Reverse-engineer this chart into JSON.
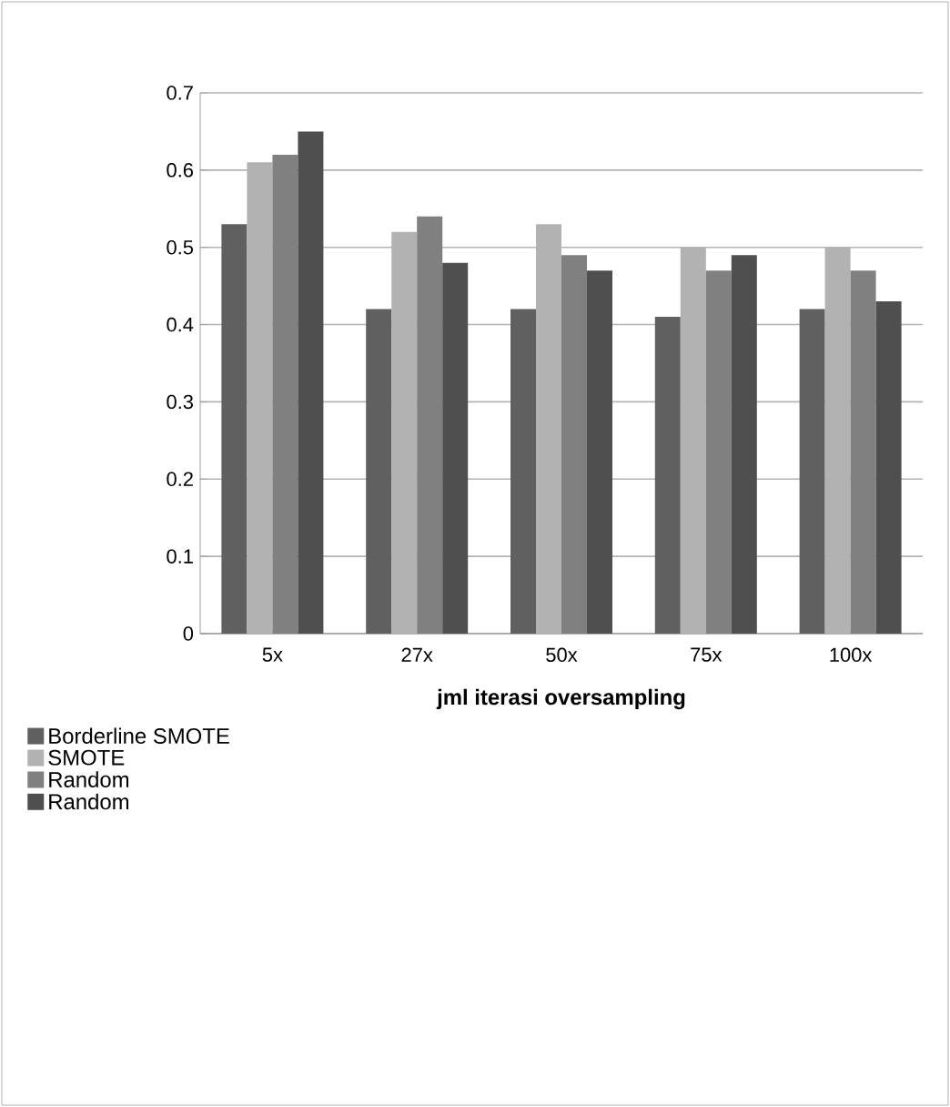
{
  "chart_data": {
    "type": "bar",
    "xlabel": "jml iterasi oversampling",
    "categories": [
      "5x",
      "27x",
      "50x",
      "75x",
      "100x"
    ],
    "series": [
      {
        "name": "Borderline SMOTE",
        "color": "#606060",
        "values": [
          0.53,
          0.42,
          0.42,
          0.41,
          0.42
        ]
      },
      {
        "name": "SMOTE",
        "color": "#b2b2b2",
        "values": [
          0.61,
          0.52,
          0.53,
          0.5,
          0.5
        ]
      },
      {
        "name": "Random",
        "color": "#808080",
        "values": [
          0.62,
          0.54,
          0.49,
          0.47,
          0.47
        ]
      },
      {
        "name": "Random",
        "color": "#4f4f4f",
        "values": [
          0.65,
          0.48,
          0.47,
          0.49,
          0.43
        ]
      }
    ],
    "ylim": [
      0,
      0.7
    ],
    "yticks": [
      0,
      0.1,
      0.2,
      0.3,
      0.4,
      0.5,
      0.6,
      0.7
    ],
    "grid": "y",
    "legend": "bottom"
  }
}
